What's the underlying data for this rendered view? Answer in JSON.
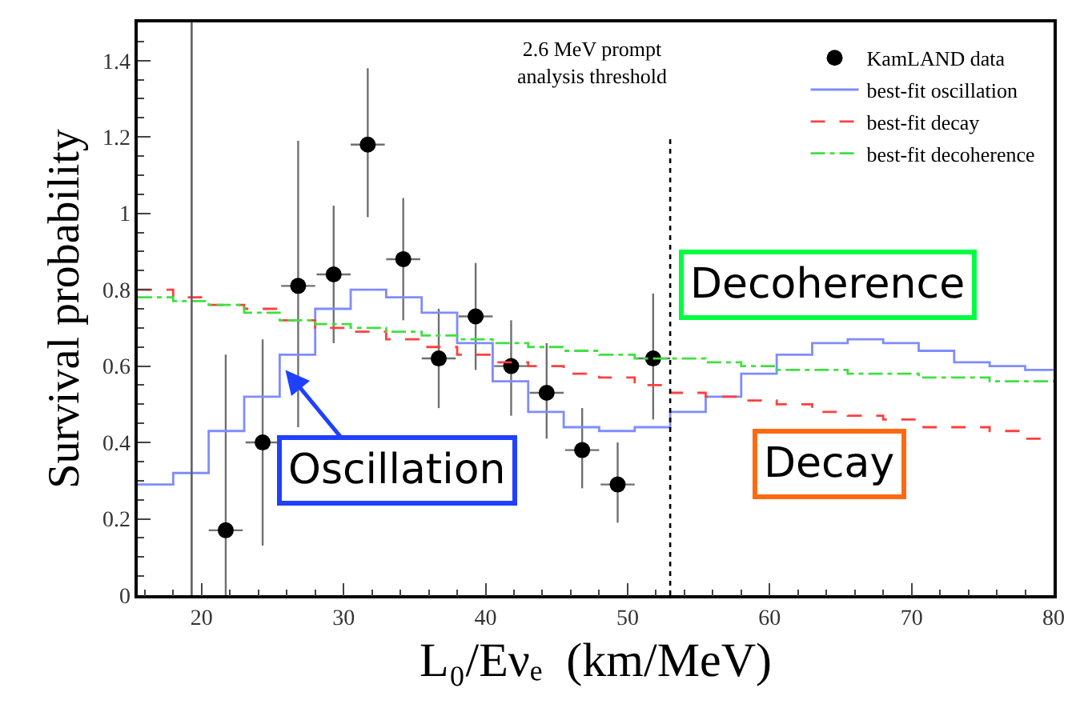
{
  "chart_data": {
    "type": "scatter",
    "xlabel": "L₀/Eνₑ  (km/MeV)",
    "ylabel": "Survival probability",
    "xlim": [
      15.5,
      80
    ],
    "ylim": [
      0,
      1.5
    ],
    "xticks": [
      20,
      30,
      40,
      50,
      60,
      70,
      80
    ],
    "yticks": [
      0,
      0.2,
      0.4,
      0.6,
      0.8,
      1,
      1.2,
      1.4
    ],
    "legend": "top right",
    "series": [
      {
        "name": "KamLAND data",
        "color": "#000000",
        "marker": "circle",
        "x": [
          21.7,
          24.3,
          26.8,
          29.3,
          31.7,
          34.2,
          36.7,
          39.3,
          41.8,
          44.3,
          46.8,
          49.3,
          51.8
        ],
        "values": [
          0.17,
          0.4,
          0.81,
          0.84,
          1.18,
          0.88,
          0.62,
          0.73,
          0.6,
          0.53,
          0.38,
          0.29,
          0.62
        ],
        "errors": [
          [
            0,
            0.63
          ],
          [
            0.13,
            0.67
          ],
          [
            0.44,
            1.19
          ],
          [
            0.66,
            1.02
          ],
          [
            0.99,
            1.38
          ],
          [
            0.72,
            1.04
          ],
          [
            0.49,
            0.75
          ],
          [
            0.59,
            0.87
          ],
          [
            0.47,
            0.72
          ],
          [
            0.41,
            0.66
          ],
          [
            0.28,
            0.49
          ],
          [
            0.19,
            0.4
          ],
          [
            0.46,
            0.79
          ]
        ],
        "xerrors": [
          1.2,
          1.2,
          1.2,
          1.2,
          1.2,
          1.2,
          1.2,
          1.2,
          1.2,
          1.2,
          1.2,
          1.2,
          1.2
        ]
      },
      {
        "name": "best-fit oscillation",
        "type": "step",
        "color": "#7f8cff",
        "line_style": "solid",
        "x": [
          15.5,
          18,
          20.5,
          23,
          25.5,
          28,
          30.5,
          33,
          35.5,
          38,
          40.5,
          43,
          45.5,
          48,
          50.5,
          53,
          55.5,
          58,
          60.5,
          63,
          65.5,
          68,
          70.5,
          73,
          75.5,
          78,
          80
        ],
        "values": [
          0.29,
          0.32,
          0.43,
          0.52,
          0.63,
          0.75,
          0.8,
          0.78,
          0.74,
          0.66,
          0.56,
          0.48,
          0.44,
          0.43,
          0.44,
          0.48,
          0.52,
          0.58,
          0.63,
          0.66,
          0.67,
          0.66,
          0.64,
          0.61,
          0.6,
          0.59,
          0.59
        ]
      },
      {
        "name": "best-fit decay",
        "type": "step",
        "color": "#ff4040",
        "line_style": "dashed",
        "x": [
          15.5,
          18,
          20.5,
          23,
          25.5,
          28,
          30.5,
          33,
          35.5,
          38,
          40.5,
          43,
          45.5,
          48,
          50.5,
          53,
          55.5,
          58,
          60.5,
          63,
          65.5,
          68,
          70.5,
          73,
          75.5,
          78,
          80
        ],
        "values": [
          0.8,
          0.78,
          0.76,
          0.75,
          0.72,
          0.7,
          0.69,
          0.67,
          0.65,
          0.63,
          0.61,
          0.6,
          0.58,
          0.57,
          0.55,
          0.53,
          0.52,
          0.51,
          0.5,
          0.48,
          0.47,
          0.46,
          0.44,
          0.44,
          0.43,
          0.41,
          0.41
        ]
      },
      {
        "name": "best-fit decoherence",
        "type": "step",
        "color": "#40e040",
        "line_style": "dashdot",
        "x": [
          15.5,
          18,
          20.5,
          23,
          25.5,
          28,
          30.5,
          33,
          35.5,
          38,
          40.5,
          43,
          45.5,
          48,
          50.5,
          53,
          55.5,
          58,
          60.5,
          63,
          65.5,
          68,
          70.5,
          73,
          75.5,
          78,
          80
        ],
        "values": [
          0.78,
          0.77,
          0.76,
          0.74,
          0.72,
          0.71,
          0.7,
          0.69,
          0.68,
          0.67,
          0.66,
          0.65,
          0.64,
          0.63,
          0.62,
          0.62,
          0.61,
          0.6,
          0.59,
          0.59,
          0.58,
          0.58,
          0.57,
          0.57,
          0.56,
          0.56,
          0.56
        ]
      }
    ],
    "ref_lines": [
      {
        "axis": "x",
        "value": 19.3,
        "color": "#606060",
        "line_style": "solid"
      },
      {
        "axis": "x",
        "value": 53,
        "color": "#000000",
        "line_style": "dotted",
        "label": "2.6 MeV prompt\nanalysis threshold"
      }
    ],
    "annotations": [
      {
        "text": "Oscillation",
        "x": 25.9,
        "y": 0.59
      },
      "Decoherence",
      "Decay"
    ]
  }
}
